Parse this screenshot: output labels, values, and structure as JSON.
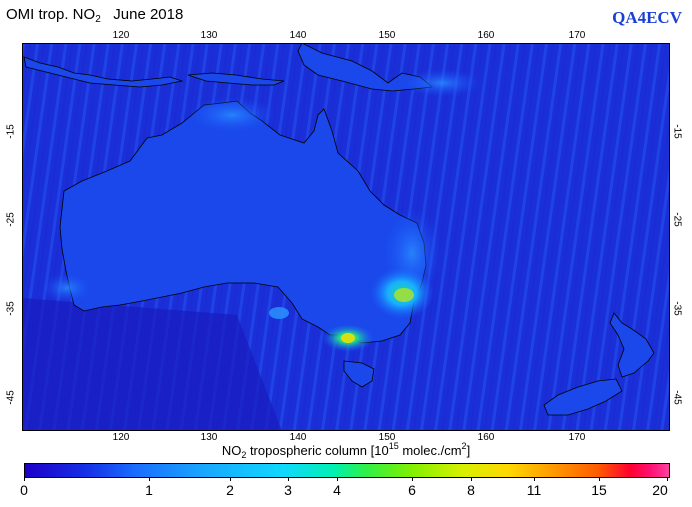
{
  "title": {
    "prefix": "OMI trop. NO",
    "sub": "2",
    "date": "June 2018"
  },
  "brand": "QA4ECV",
  "lon_ticks": [
    "120",
    "130",
    "140",
    "150",
    "160",
    "170"
  ],
  "lat_ticks": [
    "-15",
    "-25",
    "-35",
    "-45"
  ],
  "axis_title": {
    "prefix": "NO",
    "sub": "2",
    "mid": " tropospheric column [10",
    "sup": "15",
    "suffix": " molec./cm",
    "sup2": "2",
    "close": "]"
  },
  "colorbar": {
    "labels": [
      "0",
      "1",
      "2",
      "3",
      "4",
      "6",
      "8",
      "11",
      "15",
      "20"
    ]
  },
  "colors": {
    "ocean": "#1a2fd8",
    "land": "#1a45e8",
    "coast": "#000000",
    "brand": "#1a3fd6"
  }
}
